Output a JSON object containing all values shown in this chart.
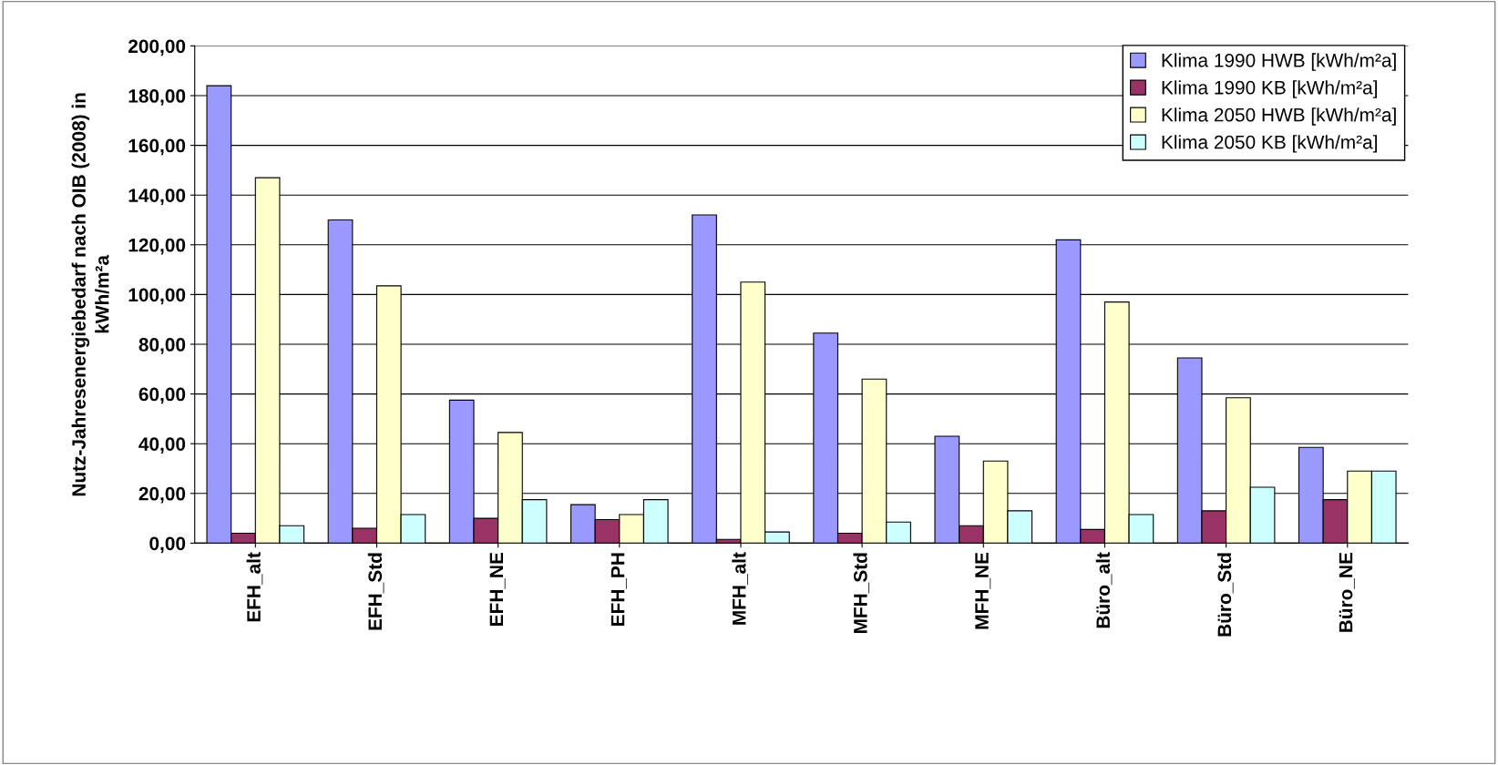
{
  "chart_data": {
    "type": "bar",
    "ylabel": "Nutz-Jahresenergiebedarf nach OIB (2008) in\nkWh/m²a",
    "categories": [
      "EFH_alt",
      "EFH_Std",
      "EFH_NE",
      "EFH_PH",
      "MFH_alt",
      "MFH_Std",
      "MFH_NE",
      "Büro_alt",
      "Büro_Std",
      "Büro_NE"
    ],
    "series": [
      {
        "name": "Klima 1990 HWB [kWh/m²a]",
        "color": "#9999ff",
        "values": [
          184,
          130,
          57.5,
          15.5,
          132,
          84.5,
          43,
          122,
          74.5,
          38.5
        ]
      },
      {
        "name": "Klima 1990 KB [kWh/m²a]",
        "color": "#993366",
        "values": [
          4,
          6,
          10,
          9.5,
          1.5,
          4,
          7,
          5.5,
          13,
          17.5
        ]
      },
      {
        "name": "Klima 2050 HWB [kWh/m²a]",
        "color": "#ffffcc",
        "values": [
          147,
          103.5,
          44.5,
          11.5,
          105,
          66,
          33,
          97,
          58.5,
          29
        ]
      },
      {
        "name": "Klima 2050 KB [kWh/m²a]",
        "color": "#ccffff",
        "values": [
          7,
          11.5,
          17.5,
          17.5,
          4.5,
          8.5,
          13,
          11.5,
          22.5,
          29
        ]
      }
    ],
    "ylim": [
      0,
      200
    ],
    "yticks": [
      {
        "value": 0,
        "label": "0,00"
      },
      {
        "value": 20,
        "label": "20,00"
      },
      {
        "value": 40,
        "label": "40,00"
      },
      {
        "value": 60,
        "label": "60,00"
      },
      {
        "value": 80,
        "label": "80,00"
      },
      {
        "value": 100,
        "label": "100,00"
      },
      {
        "value": 120,
        "label": "120,00"
      },
      {
        "value": 140,
        "label": "140,00"
      },
      {
        "value": 160,
        "label": "160,00"
      },
      {
        "value": 180,
        "label": "180,00"
      },
      {
        "value": 200,
        "label": "200,00"
      }
    ],
    "grid": "y",
    "legend": "top right"
  }
}
